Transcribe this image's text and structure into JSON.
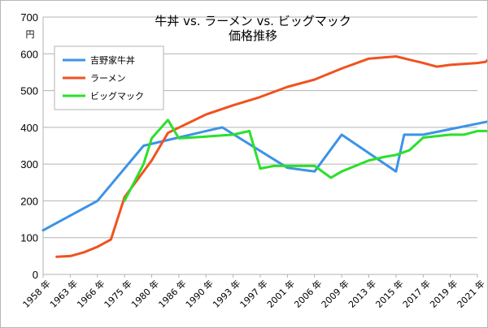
{
  "chart_data": {
    "type": "line",
    "title": "牛丼 vs. ラーメン vs. ビッグマック",
    "subtitle": "価格推移",
    "ylabel": "円",
    "xlabel": "",
    "ylim": [
      0,
      700
    ],
    "yticks": [
      0,
      100,
      200,
      300,
      400,
      500,
      600,
      700
    ],
    "grid": true,
    "legend_position": "top-left",
    "categories": [
      "1958 年",
      "1963 年",
      "1966 年",
      "1975 年",
      "1980 年",
      "1986 年",
      "1990 年",
      "1993 年",
      "1997 年",
      "2001 年",
      "2006 年",
      "2009 年",
      "2013 年",
      "2015 年",
      "2017 年",
      "2019 年",
      "2021 年"
    ],
    "series": [
      {
        "name": "吉野家牛丼",
        "color": "#3c93e6",
        "points": [
          [
            0,
            120
          ],
          [
            2,
            200
          ],
          [
            3.7,
            350
          ],
          [
            6,
            390
          ],
          [
            6.6,
            400
          ],
          [
            9,
            290
          ],
          [
            10,
            280
          ],
          [
            11,
            380
          ],
          [
            13,
            280
          ],
          [
            13.3,
            380
          ],
          [
            14,
            380
          ],
          [
            15,
            395
          ],
          [
            16,
            410
          ],
          [
            17,
            425
          ]
        ]
      },
      {
        "name": "ラーメン",
        "color": "#f0521f",
        "points": [
          [
            0.5,
            48
          ],
          [
            1,
            50
          ],
          [
            1.5,
            60
          ],
          [
            2,
            75
          ],
          [
            2.5,
            95
          ],
          [
            3,
            210
          ],
          [
            4,
            310
          ],
          [
            4.6,
            385
          ],
          [
            6,
            435
          ],
          [
            7,
            460
          ],
          [
            7.9,
            480
          ],
          [
            9,
            510
          ],
          [
            10,
            530
          ],
          [
            11,
            560
          ],
          [
            12,
            587
          ],
          [
            13,
            593
          ],
          [
            14,
            575
          ],
          [
            14.5,
            565
          ],
          [
            15,
            570
          ],
          [
            16,
            575
          ],
          [
            16.3,
            578
          ],
          [
            16.7,
            605
          ],
          [
            17,
            603
          ]
        ]
      },
      {
        "name": "ビッグマック",
        "color": "#2be02b",
        "points": [
          [
            3,
            200
          ],
          [
            3.7,
            300
          ],
          [
            4,
            370
          ],
          [
            4.6,
            420
          ],
          [
            5,
            370
          ],
          [
            6,
            375
          ],
          [
            7,
            380
          ],
          [
            7.6,
            390
          ],
          [
            8,
            288
          ],
          [
            8.5,
            295
          ],
          [
            9,
            295
          ],
          [
            10,
            295
          ],
          [
            10.6,
            263
          ],
          [
            11,
            280
          ],
          [
            12,
            310
          ],
          [
            12.6,
            320
          ],
          [
            13,
            325
          ],
          [
            13.5,
            338
          ],
          [
            14,
            372
          ],
          [
            15,
            380
          ],
          [
            15.5,
            380
          ],
          [
            16,
            390
          ],
          [
            17,
            390
          ]
        ]
      }
    ]
  }
}
